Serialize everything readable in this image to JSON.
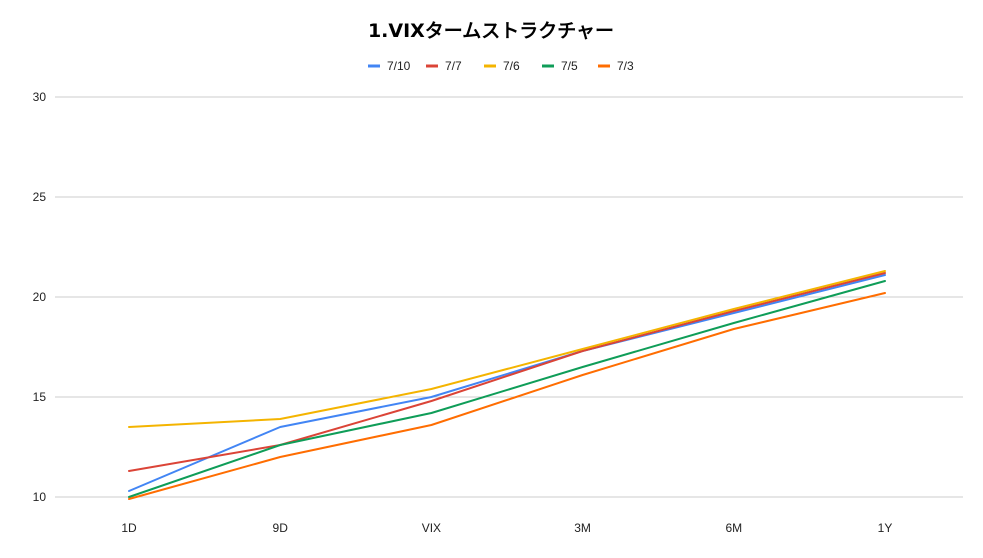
{
  "chart_data": {
    "type": "line",
    "title": "1.VIXタームストラクチャー",
    "xlabel": "",
    "ylabel": "",
    "categories": [
      "1D",
      "9D",
      "VIX",
      "3M",
      "6M",
      "1Y"
    ],
    "ylim": [
      10,
      30
    ],
    "yticks": [
      10,
      15,
      20,
      25,
      30
    ],
    "grid": true,
    "legend_position": "top",
    "series": [
      {
        "name": "7/10",
        "color": "#4285f4",
        "values": [
          10.3,
          13.5,
          15.0,
          17.3,
          19.2,
          21.1
        ]
      },
      {
        "name": "7/7",
        "color": "#db4437",
        "values": [
          11.3,
          12.6,
          14.8,
          17.3,
          19.3,
          21.2
        ]
      },
      {
        "name": "7/6",
        "color": "#f4b400",
        "values": [
          13.5,
          13.9,
          15.4,
          17.4,
          19.4,
          21.3
        ]
      },
      {
        "name": "7/5",
        "color": "#0f9d58",
        "values": [
          10.0,
          12.6,
          14.2,
          16.5,
          18.7,
          20.8
        ]
      },
      {
        "name": "7/3",
        "color": "#ff6d01",
        "values": [
          9.9,
          12.0,
          13.6,
          16.1,
          18.4,
          20.2
        ]
      }
    ]
  }
}
